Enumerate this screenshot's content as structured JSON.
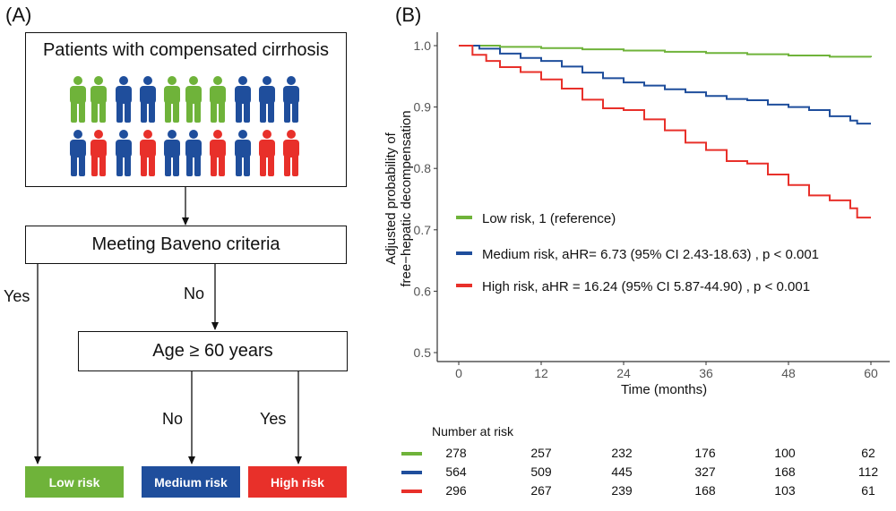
{
  "panel_a": {
    "label": "(A)",
    "patients_box": "Patients with compensated cirrhosis",
    "people_row1": [
      "green",
      "green",
      "blue",
      "blue",
      "green",
      "green",
      "green",
      "blue",
      "blue",
      "blue"
    ],
    "people_row2": [
      "blue",
      "red",
      "blue",
      "red",
      "blue",
      "blue",
      "red",
      "blue",
      "red",
      "red"
    ],
    "baveno_box": "Meeting Baveno criteria",
    "age_box": "Age ≥ 60 years",
    "yes_label_1": "Yes",
    "no_label_1": "No",
    "no_label_2": "No",
    "yes_label_2": "Yes",
    "low_risk": "Low risk",
    "medium_risk": "Medium risk",
    "high_risk": "High risk"
  },
  "panel_b": {
    "label": "(B)",
    "risk_table": {
      "title": "Number at risk",
      "rows": [
        {
          "values": [
            "278",
            "257",
            "232",
            "176",
            "100",
            "62"
          ]
        },
        {
          "values": [
            "564",
            "509",
            "445",
            "327",
            "168",
            "112"
          ]
        },
        {
          "values": [
            "296",
            "267",
            "239",
            "168",
            "103",
            "61"
          ]
        }
      ]
    }
  },
  "colors": {
    "green": "#6fb33a",
    "blue": "#1f4e9c",
    "red": "#e8302a"
  },
  "chart_data": {
    "type": "line",
    "title": "",
    "xlabel": "Time (months)",
    "ylabel_lines": [
      "Adjusted probability of",
      "free−hepatic decompensation"
    ],
    "xlim": [
      0,
      60
    ],
    "ylim": [
      0.5,
      1.0
    ],
    "xticks": [
      0,
      12,
      24,
      36,
      48,
      60
    ],
    "yticks": [
      0.5,
      0.6,
      0.7,
      0.8,
      0.9,
      1.0
    ],
    "ytick_labels": [
      "0.5",
      "0.6",
      "0.7",
      "0.8",
      "0.9",
      "1.0"
    ],
    "legend_position": "middle-left",
    "series": [
      {
        "name": "Low risk, 1 (reference)",
        "color": "#6fb33a",
        "x": [
          0,
          6,
          12,
          18,
          24,
          30,
          36,
          42,
          48,
          54,
          60
        ],
        "y": [
          1.0,
          0.998,
          0.996,
          0.994,
          0.992,
          0.99,
          0.988,
          0.986,
          0.984,
          0.982,
          0.981
        ]
      },
      {
        "name": "Medium risk, aHR= 6.73 (95% CI 2.43-18.63) , p < 0.001",
        "color": "#1f4e9c",
        "x": [
          0,
          3,
          6,
          9,
          12,
          15,
          18,
          21,
          24,
          27,
          30,
          33,
          36,
          39,
          42,
          45,
          48,
          51,
          54,
          57,
          58,
          60
        ],
        "y": [
          1.0,
          0.995,
          0.987,
          0.98,
          0.975,
          0.966,
          0.956,
          0.947,
          0.94,
          0.935,
          0.929,
          0.924,
          0.918,
          0.913,
          0.911,
          0.904,
          0.9,
          0.895,
          0.885,
          0.878,
          0.873,
          0.873
        ]
      },
      {
        "name": "High risk, aHR = 16.24 (95% CI 5.87-44.90) , p < 0.001",
        "color": "#e8302a",
        "x": [
          0,
          2,
          4,
          6,
          9,
          12,
          15,
          18,
          21,
          24,
          27,
          30,
          33,
          36,
          39,
          42,
          45,
          48,
          51,
          54,
          57,
          58,
          60
        ],
        "y": [
          1.0,
          0.985,
          0.975,
          0.965,
          0.957,
          0.945,
          0.93,
          0.912,
          0.898,
          0.895,
          0.88,
          0.862,
          0.842,
          0.83,
          0.812,
          0.808,
          0.79,
          0.773,
          0.756,
          0.748,
          0.735,
          0.72,
          0.72
        ]
      }
    ]
  }
}
